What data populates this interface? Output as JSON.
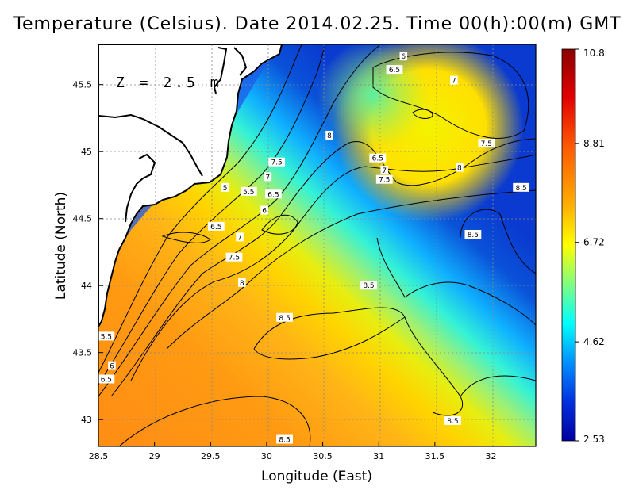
{
  "title": "Temperature (Celsius). Date 2014.02.25. Time 00(h):00(m) GMT",
  "depth_label": "Z = 2.5 m",
  "x_axis": {
    "label": "Longitude (East)",
    "range": [
      28.5,
      32.4
    ],
    "ticks": [
      "28.5",
      "29",
      "29.5",
      "30",
      "30.5",
      "31",
      "31.5",
      "32"
    ]
  },
  "y_axis": {
    "label": "Latitude (North)",
    "range": [
      42.8,
      45.8
    ],
    "ticks": [
      "43",
      "43.5",
      "44",
      "44.5",
      "45",
      "45.5"
    ]
  },
  "colorbar": {
    "min": 2.53,
    "max": 10.8,
    "tick_labels": [
      "10.8",
      "8.81",
      "6.72",
      "4.62",
      "2.53"
    ],
    "colors": [
      "#8b0000",
      "#ff0000",
      "#ff8c00",
      "#ffff00",
      "#7fff7f",
      "#00ffff",
      "#0080ff",
      "#0000cd",
      "#00008b"
    ]
  },
  "contour_labels": [
    {
      "text": "6",
      "lon": 31.22,
      "lat": 45.71
    },
    {
      "text": "6.5",
      "lon": 31.14,
      "lat": 45.61
    },
    {
      "text": "7",
      "lon": 31.67,
      "lat": 45.53
    },
    {
      "text": "8",
      "lon": 30.56,
      "lat": 45.12
    },
    {
      "text": "7.5",
      "lon": 31.96,
      "lat": 45.06
    },
    {
      "text": "6.5",
      "lon": 30.99,
      "lat": 44.95
    },
    {
      "text": "7.5",
      "lon": 30.09,
      "lat": 44.92
    },
    {
      "text": "7",
      "lon": 31.05,
      "lat": 44.86
    },
    {
      "text": "8",
      "lon": 31.72,
      "lat": 44.88
    },
    {
      "text": "7",
      "lon": 30.01,
      "lat": 44.81
    },
    {
      "text": "7.5",
      "lon": 31.05,
      "lat": 44.79
    },
    {
      "text": "5",
      "lon": 29.63,
      "lat": 44.73
    },
    {
      "text": "5.5",
      "lon": 29.84,
      "lat": 44.7
    },
    {
      "text": "6.5",
      "lon": 30.06,
      "lat": 44.68
    },
    {
      "text": "8.5",
      "lon": 32.27,
      "lat": 44.73
    },
    {
      "text": "6",
      "lon": 29.98,
      "lat": 44.56
    },
    {
      "text": "6.5",
      "lon": 29.55,
      "lat": 44.44
    },
    {
      "text": "8.5",
      "lon": 31.84,
      "lat": 44.38
    },
    {
      "text": "7",
      "lon": 29.76,
      "lat": 44.36
    },
    {
      "text": "7.5",
      "lon": 29.71,
      "lat": 44.21
    },
    {
      "text": "8",
      "lon": 29.78,
      "lat": 44.02
    },
    {
      "text": "8.5",
      "lon": 30.91,
      "lat": 44.0
    },
    {
      "text": "8.5",
      "lon": 30.16,
      "lat": 43.76
    },
    {
      "text": "5.5",
      "lon": 28.57,
      "lat": 43.62
    },
    {
      "text": "6",
      "lon": 28.62,
      "lat": 43.4
    },
    {
      "text": "6.5",
      "lon": 28.57,
      "lat": 43.3
    },
    {
      "text": "8.5",
      "lon": 31.66,
      "lat": 42.99
    },
    {
      "text": "8.5",
      "lon": 30.16,
      "lat": 42.85
    }
  ]
}
